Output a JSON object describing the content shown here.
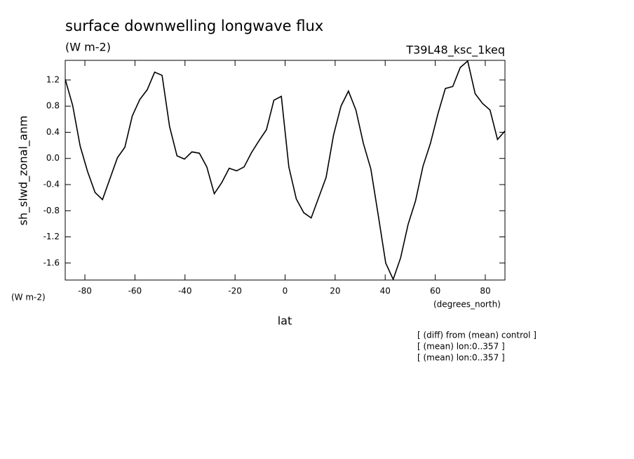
{
  "chart_data": {
    "type": "line",
    "title": "surface downwelling longwave flux",
    "subtitle": "(W m-2)",
    "dataset": "T39L48_ksc_1keq",
    "ylabel": "sh_slwd_zonal_anm",
    "yunits": "(W m-2)",
    "xunits": "(degrees_north)",
    "xlabel": "lat",
    "notes": [
      "[ (diff) from (mean) control ]",
      "[ (mean) lon:0..357 ]",
      "[ (mean) lon:0..357 ]"
    ],
    "x": [
      -87.86,
      -84.88,
      -81.9,
      -78.93,
      -75.95,
      -72.97,
      -69.99,
      -67.01,
      -64.04,
      -61.06,
      -58.08,
      -55.1,
      -52.12,
      -49.15,
      -46.17,
      -43.19,
      -40.21,
      -37.23,
      -34.26,
      -31.28,
      -28.3,
      -25.32,
      -22.34,
      -19.37,
      -16.39,
      -13.41,
      -10.43,
      -7.45,
      -4.48,
      -1.5,
      1.5,
      4.48,
      7.45,
      10.43,
      13.41,
      16.39,
      19.37,
      22.34,
      25.32,
      28.3,
      31.28,
      34.26,
      37.23,
      40.21,
      43.19,
      46.17,
      49.15,
      52.12,
      55.1,
      58.08,
      61.06,
      64.04,
      67.01,
      69.99,
      72.97,
      75.95,
      78.93,
      81.9,
      84.88,
      87.86
    ],
    "series": [
      {
        "name": "sh_slwd_zonal_anm",
        "color": "#000000",
        "values": [
          1.21,
          0.81,
          0.19,
          -0.2,
          -0.52,
          -0.63,
          -0.31,
          0.01,
          0.17,
          0.65,
          0.9,
          1.05,
          1.32,
          1.27,
          0.49,
          0.04,
          -0.01,
          0.1,
          0.08,
          -0.13,
          -0.54,
          -0.37,
          -0.15,
          -0.19,
          -0.13,
          0.09,
          0.27,
          0.44,
          0.89,
          0.95,
          -0.13,
          -0.62,
          -0.83,
          -0.91,
          -0.6,
          -0.29,
          0.36,
          0.8,
          1.03,
          0.74,
          0.23,
          -0.16,
          -0.87,
          -1.6,
          -1.85,
          -1.52,
          -1.01,
          -0.65,
          -0.12,
          0.23,
          0.68,
          1.07,
          1.1,
          1.39,
          1.49,
          0.99,
          0.84,
          0.74,
          0.29,
          0.42
        ]
      }
    ],
    "xlim": [
      -87.86,
      87.86
    ],
    "ylim": [
      -1.86,
      1.5
    ],
    "xticks": [
      -80,
      -60,
      -40,
      -20,
      0,
      20,
      40,
      60,
      80
    ],
    "yticks": [
      1.2,
      0.8,
      0.4,
      {
        "value": 0,
        "label": "0.0"
      },
      -0.4,
      -0.8,
      -1.2,
      -1.6
    ],
    "grid": false
  }
}
